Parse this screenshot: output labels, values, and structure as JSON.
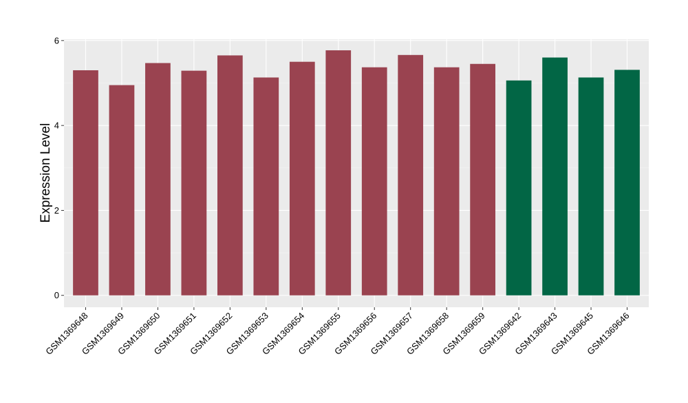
{
  "chart_data": {
    "type": "bar",
    "title": "",
    "xlabel": "",
    "ylabel": "Expression Level",
    "ylim": [
      -0.28,
      6.03
    ],
    "yticks": [
      0,
      2,
      4,
      6
    ],
    "grid": true,
    "legend": "none",
    "categories": [
      "GSM1369648",
      "GSM1369649",
      "GSM1369650",
      "GSM1369651",
      "GSM1369652",
      "GSM1369653",
      "GSM1369654",
      "GSM1369655",
      "GSM1369656",
      "GSM1369657",
      "GSM1369658",
      "GSM1369659",
      "GSM1369642",
      "GSM1369643",
      "GSM1369645",
      "GSM1369646"
    ],
    "values": [
      5.3,
      4.95,
      5.47,
      5.29,
      5.65,
      5.13,
      5.5,
      5.77,
      5.37,
      5.66,
      5.37,
      5.45,
      5.06,
      5.6,
      5.13,
      5.31
    ],
    "bar_colors": [
      "#9a4350",
      "#9a4350",
      "#9a4350",
      "#9a4350",
      "#9a4350",
      "#9a4350",
      "#9a4350",
      "#9a4350",
      "#9a4350",
      "#9a4350",
      "#9a4350",
      "#9a4350",
      "#026645",
      "#026645",
      "#026645",
      "#026645"
    ],
    "panel_background": "#ebebeb",
    "gridline_color": "#ffffff"
  }
}
